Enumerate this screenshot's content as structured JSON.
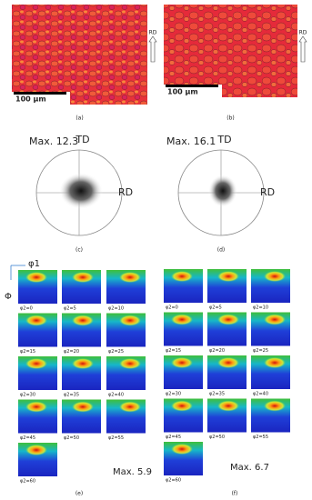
{
  "maps": [
    {
      "label": "(a)",
      "scale_bar": "100 µm",
      "direction": "RD"
    },
    {
      "label": "(b)",
      "scale_bar": "100 µm",
      "direction": "RD"
    }
  ],
  "pole_figures": [
    {
      "max": "Max. 12.3",
      "top": "TD",
      "right": "RD",
      "label": "(c)"
    },
    {
      "max": "Max. 16.1",
      "top": "TD",
      "right": "RD",
      "label": "(d)"
    }
  ],
  "odf": {
    "axis_x": "φ1",
    "axis_y": "Φ",
    "panels": [
      {
        "label": "(e)",
        "max": "Max. 5.9",
        "sections": [
          "φ2=0",
          "φ2=5",
          "φ2=10",
          "φ2=15",
          "φ2=20",
          "φ2=25",
          "φ2=30",
          "φ2=35",
          "φ2=40",
          "φ2=45",
          "φ2=50",
          "φ2=55",
          "φ2=60"
        ]
      },
      {
        "label": "(f)",
        "max": "Max. 6.7",
        "sections": [
          "φ2=0",
          "φ2=5",
          "φ2=10",
          "φ2=15",
          "φ2=20",
          "φ2=25",
          "φ2=30",
          "φ2=35",
          "φ2=40",
          "φ2=45",
          "φ2=50",
          "φ2=55",
          "φ2=60"
        ]
      }
    ]
  }
}
